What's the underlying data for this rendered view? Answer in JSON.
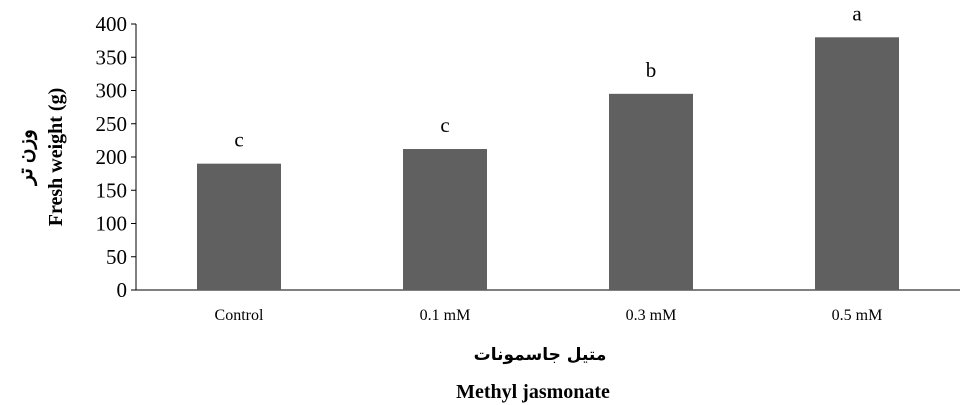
{
  "chart_data": {
    "type": "bar",
    "categories": [
      "Control",
      "0.1 mM",
      "0.3 mM",
      "0.5 mM"
    ],
    "values": [
      190,
      212,
      295,
      380
    ],
    "significance_letters": [
      "c",
      "c",
      "b",
      "a"
    ],
    "ylabel": "Fresh weight (g)",
    "ylabel_fa": "وزن تر",
    "xlabel": "Methyl jasmonate",
    "xlabel_fa": "متیل جاسمونات",
    "ylim": [
      0,
      400
    ],
    "yticks": [
      "0",
      "50",
      "100",
      "150",
      "200",
      "250",
      "300",
      "350",
      "400"
    ],
    "grid": false,
    "bar_color": "#606060"
  }
}
